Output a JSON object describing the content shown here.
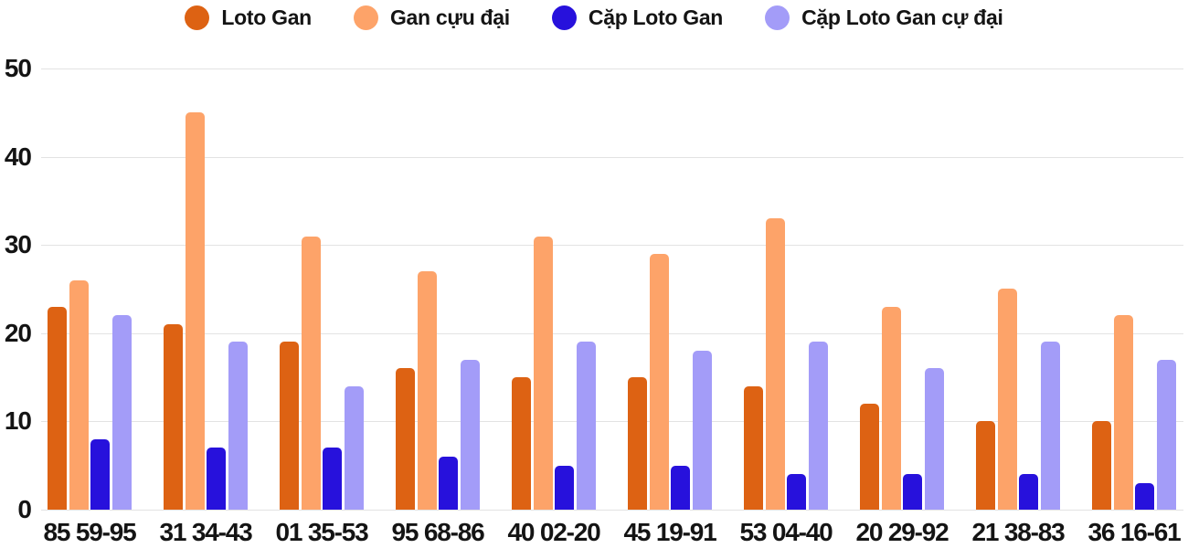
{
  "chart_data": {
    "type": "bar",
    "title": "",
    "xlabel": "",
    "ylabel": "",
    "categories": [
      "85 59-95",
      "31 34-43",
      "01 35-53",
      "95 68-86",
      "40 02-20",
      "45 19-91",
      "53 04-40",
      "20 29-92",
      "21 38-83",
      "36 16-61"
    ],
    "series": [
      {
        "name": "Loto Gan",
        "color": "#DD6213",
        "values": [
          23,
          21,
          19,
          16,
          15,
          15,
          14,
          12,
          10,
          10
        ]
      },
      {
        "name": "Gan cựu đại",
        "color": "#FDA369",
        "values": [
          26,
          45,
          31,
          27,
          31,
          29,
          33,
          23,
          25,
          22
        ]
      },
      {
        "name": "Cặp Loto Gan",
        "color": "#2711DC",
        "values": [
          8,
          7,
          7,
          6,
          5,
          5,
          4,
          4,
          4,
          3
        ]
      },
      {
        "name": "Cặp Loto Gan cự đại",
        "color": "#A39CF8",
        "values": [
          22,
          19,
          14,
          17,
          19,
          18,
          19,
          16,
          19,
          17
        ]
      }
    ],
    "ylim": [
      0,
      50
    ],
    "yticks": [
      0,
      10,
      20,
      30,
      40,
      50
    ],
    "grid": true,
    "legend_position": "top",
    "background_color": "#ffffff",
    "gridline_color": "#e3e3e3",
    "text_color": "#141414"
  }
}
